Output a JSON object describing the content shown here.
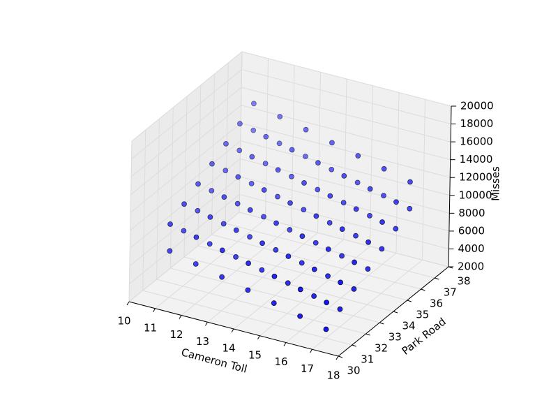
{
  "chart_data": {
    "type": "scatter3d",
    "x_label": "Cameron Toll",
    "y_label": "Park Road",
    "z_label": "Misses",
    "color": "#0000ff",
    "xlim": [
      10,
      18
    ],
    "ylim": [
      30,
      38
    ],
    "zlim": [
      2000,
      20000
    ],
    "xticks": [
      10,
      11,
      12,
      13,
      14,
      15,
      16,
      17,
      18
    ],
    "yticks": [
      30,
      31,
      32,
      33,
      34,
      35,
      36,
      37,
      38
    ],
    "zticks": [
      2000,
      4000,
      6000,
      8000,
      10000,
      12000,
      14000,
      16000,
      18000,
      20000
    ],
    "grid": true,
    "x": [
      11,
      11,
      11,
      11,
      11,
      11,
      11,
      12,
      12,
      12,
      12,
      12,
      12,
      12,
      13,
      13,
      13,
      13,
      13,
      13,
      13,
      14,
      14,
      14,
      14,
      14,
      14,
      14,
      15,
      15,
      15,
      15,
      15,
      15,
      15,
      16,
      16,
      16,
      16,
      16,
      16,
      16,
      17,
      17,
      17,
      17,
      17,
      17,
      17,
      11,
      11,
      11,
      11,
      11,
      11,
      11,
      12,
      12,
      12,
      12,
      12,
      12,
      12,
      13,
      13,
      13,
      13,
      13,
      13,
      13,
      14,
      14,
      14,
      14,
      14,
      14,
      14,
      15,
      15,
      15,
      15,
      15,
      15,
      15,
      16,
      16,
      16,
      16,
      16,
      16,
      16,
      17,
      17,
      17,
      17,
      17,
      17,
      17
    ],
    "y": [
      31,
      32,
      33,
      34,
      35,
      36,
      37,
      31,
      32,
      33,
      34,
      35,
      36,
      37,
      31,
      32,
      33,
      34,
      35,
      36,
      37,
      31,
      32,
      33,
      34,
      35,
      36,
      37,
      31,
      32,
      33,
      34,
      35,
      36,
      37,
      31,
      32,
      33,
      34,
      35,
      36,
      37,
      31,
      32,
      33,
      34,
      35,
      36,
      37,
      31,
      32,
      33,
      34,
      35,
      36,
      37,
      31,
      32,
      33,
      34,
      35,
      36,
      37,
      31,
      32,
      33,
      34,
      35,
      36,
      37,
      31,
      32,
      33,
      34,
      35,
      36,
      37,
      31,
      32,
      33,
      34,
      35,
      36,
      37,
      31,
      32,
      33,
      34,
      35,
      36,
      37,
      31,
      32,
      33,
      34,
      35,
      36,
      37
    ],
    "z": [
      7200,
      8200,
      9200,
      10200,
      11200,
      12200,
      13200,
      6500,
      7500,
      8500,
      9500,
      10500,
      11500,
      12500,
      5800,
      6800,
      7800,
      8800,
      9800,
      10800,
      11800,
      5100,
      6100,
      7100,
      8100,
      9100,
      10100,
      11100,
      4400,
      5400,
      6400,
      7400,
      8400,
      9400,
      10400,
      3700,
      4700,
      5700,
      6700,
      7700,
      8700,
      9700,
      3000,
      4000,
      5000,
      6000,
      7000,
      8000,
      9000,
      10200,
      11200,
      12200,
      13200,
      14200,
      15200,
      16200,
      9500,
      10500,
      11500,
      12500,
      13500,
      14500,
      15500,
      8800,
      9800,
      10800,
      11800,
      12800,
      13800,
      14800,
      8100,
      9100,
      10100,
      11100,
      12100,
      13100,
      14100,
      7400,
      8400,
      9400,
      10400,
      11400,
      12400,
      13400,
      6700,
      7700,
      8700,
      9700,
      10700,
      11700,
      12700,
      6000,
      7000,
      8000,
      9000,
      10000,
      11000,
      12000
    ]
  }
}
